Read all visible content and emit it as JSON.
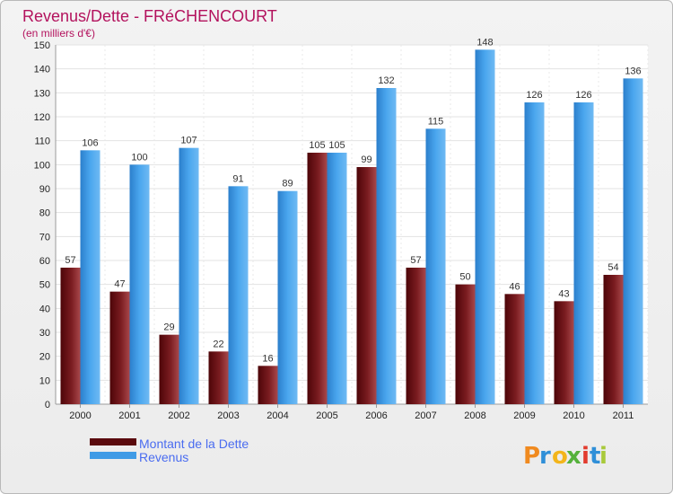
{
  "colors": {
    "debt": "#6f1418",
    "revenue": "#3f9be6",
    "title": "#b3125d",
    "legend_text": "#4a6cf0"
  },
  "brand": {
    "letters": [
      "P",
      "r",
      "o",
      "x",
      "i",
      "t",
      "i"
    ],
    "letter_colors": [
      "#f08a1f",
      "#2f8fd8",
      "#f3b51b",
      "#55b13b",
      "#e23b2e",
      "#2f8fd8",
      "#a8c93a"
    ]
  },
  "chart_data": {
    "type": "bar",
    "title": "Revenus/Dette - FRéCHENCOURT",
    "subtitle": "(en milliers d'€)",
    "xlabel": "",
    "ylabel": "",
    "ylim": [
      0,
      150
    ],
    "yticks": [
      0,
      10,
      20,
      30,
      40,
      50,
      60,
      70,
      80,
      90,
      100,
      110,
      120,
      130,
      140,
      150
    ],
    "categories": [
      "2000",
      "2001",
      "2002",
      "2003",
      "2004",
      "2005",
      "2006",
      "2007",
      "2008",
      "2009",
      "2010",
      "2011"
    ],
    "series": [
      {
        "name": "Montant de la Dette",
        "values": [
          57,
          47,
          29,
          22,
          16,
          105,
          99,
          57,
          50,
          46,
          43,
          54
        ]
      },
      {
        "name": "Revenus",
        "values": [
          106,
          100,
          107,
          91,
          89,
          105,
          132,
          115,
          148,
          126,
          126,
          136
        ]
      }
    ],
    "grid": true,
    "legend": "bottom-left"
  }
}
